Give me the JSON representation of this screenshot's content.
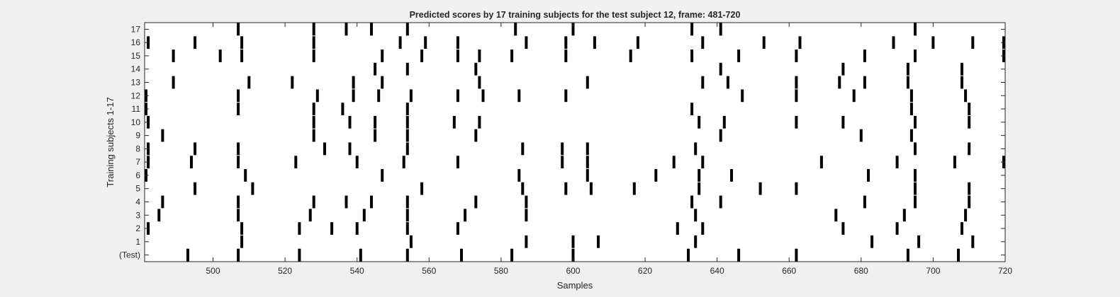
{
  "chart_data": {
    "type": "raster",
    "title": "Predicted scores by 17 training subjects for the test subject 12, frame: 481-720",
    "xlabel": "Samples",
    "ylabel": "Training subjects 1-17",
    "xlim": [
      481,
      720
    ],
    "x_ticks": [
      500,
      520,
      540,
      560,
      580,
      600,
      620,
      640,
      660,
      680,
      700,
      720
    ],
    "y_tick_labels": [
      "(Test)",
      "1",
      "2",
      "3",
      "4",
      "5",
      "6",
      "7",
      "8",
      "9",
      "10",
      "11",
      "12",
      "13",
      "14",
      "15",
      "16",
      "17"
    ],
    "grid": false,
    "bar_color": "#000000",
    "background": "#ffffff",
    "rows": [
      {
        "label": "(Test)",
        "events": [
          493,
          507,
          524,
          541,
          554,
          569,
          583,
          600,
          632,
          646,
          662,
          693,
          707
        ]
      },
      {
        "label": "1",
        "events": [
          508,
          555,
          587,
          600,
          607,
          634,
          683,
          696,
          711
        ]
      },
      {
        "label": "2",
        "events": [
          482,
          508,
          524,
          533,
          540,
          554,
          568,
          629,
          636,
          675,
          690,
          708
        ]
      },
      {
        "label": "3",
        "events": [
          485,
          507,
          527,
          542,
          554,
          570,
          587,
          634,
          673,
          692,
          709
        ]
      },
      {
        "label": "4",
        "events": [
          486,
          507,
          528,
          537,
          544,
          554,
          573,
          587,
          633,
          641,
          681,
          695,
          710
        ]
      },
      {
        "label": "5",
        "events": [
          495,
          511,
          558,
          586,
          598,
          605,
          617,
          635,
          652,
          662,
          695,
          710
        ]
      },
      {
        "label": "6",
        "events": [
          481,
          509,
          547,
          585,
          604,
          623,
          635,
          644,
          682,
          695
        ]
      },
      {
        "label": "7",
        "events": [
          482,
          494,
          507,
          523,
          540,
          553,
          568,
          597,
          604,
          628,
          636,
          669,
          690,
          706,
          720
        ]
      },
      {
        "label": "8",
        "events": [
          482,
          495,
          507,
          531,
          538,
          554,
          586,
          597,
          604,
          634,
          695,
          710
        ]
      },
      {
        "label": "9",
        "events": [
          486,
          528,
          545,
          554,
          573,
          641,
          680,
          694
        ]
      },
      {
        "label": "10",
        "events": [
          482,
          528,
          538,
          545,
          554,
          567,
          574,
          635,
          642,
          662,
          675,
          695,
          710
        ]
      },
      {
        "label": "11",
        "events": [
          481,
          507,
          528,
          536,
          554,
          633,
          694,
          710
        ]
      },
      {
        "label": "12",
        "events": [
          481,
          507,
          529,
          539,
          546,
          555,
          568,
          575,
          585,
          598,
          647,
          662,
          678,
          694,
          709
        ]
      },
      {
        "label": "13",
        "events": [
          489,
          510,
          522,
          539,
          547,
          574,
          604,
          636,
          643,
          662,
          674,
          681,
          693,
          708
        ]
      },
      {
        "label": "14",
        "events": [
          545,
          554,
          573,
          641,
          675,
          693,
          708
        ]
      },
      {
        "label": "15",
        "events": [
          489,
          502,
          508,
          528,
          547,
          558,
          568,
          574,
          583,
          598,
          616,
          633,
          646,
          662,
          681,
          695,
          720
        ]
      },
      {
        "label": "16",
        "events": [
          482,
          495,
          508,
          528,
          552,
          559,
          568,
          587,
          598,
          606,
          618,
          636,
          653,
          663,
          689,
          700,
          711,
          720
        ]
      },
      {
        "label": "17",
        "events": [
          507,
          528,
          537,
          544,
          554,
          584,
          600,
          633,
          641,
          695
        ]
      }
    ]
  }
}
